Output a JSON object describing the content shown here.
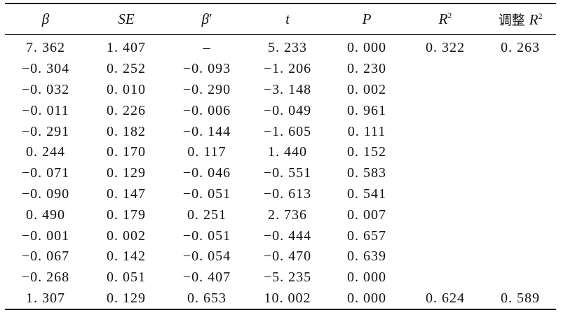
{
  "table": {
    "headers": [
      {
        "text": "β"
      },
      {
        "text": "SE"
      },
      {
        "text": "β",
        "suffix": "′"
      },
      {
        "text": "t"
      },
      {
        "text": "P"
      },
      {
        "text": "R",
        "sup": "2"
      },
      {
        "prefix": "调整 ",
        "text": "R",
        "sup": "2"
      }
    ],
    "rows": [
      [
        "7. 362",
        "1. 407",
        "–",
        "5. 233",
        "0. 000",
        "0. 322",
        "0. 263"
      ],
      [
        "−0. 304",
        "0. 252",
        "−0. 093",
        "−1. 206",
        "0. 230",
        "",
        ""
      ],
      [
        "−0. 032",
        "0. 010",
        "−0. 290",
        "−3. 148",
        "0. 002",
        "",
        ""
      ],
      [
        "−0. 011",
        "0. 226",
        "−0. 006",
        "−0. 049",
        "0. 961",
        "",
        ""
      ],
      [
        "−0. 291",
        "0. 182",
        "−0. 144",
        "−1. 605",
        "0. 111",
        "",
        ""
      ],
      [
        "0. 244",
        "0. 170",
        "0. 117",
        "1. 440",
        "0. 152",
        "",
        ""
      ],
      [
        "−0. 071",
        "0. 129",
        "−0. 046",
        "−0. 551",
        "0. 583",
        "",
        ""
      ],
      [
        "−0. 090",
        "0. 147",
        "−0. 051",
        "−0. 613",
        "0. 541",
        "",
        ""
      ],
      [
        "0. 490",
        "0. 179",
        "0. 251",
        "2. 736",
        "0. 007",
        "",
        ""
      ],
      [
        "−0. 001",
        "0. 002",
        "−0. 051",
        "−0. 444",
        "0. 657",
        "",
        ""
      ],
      [
        "−0. 067",
        "0. 142",
        "−0. 054",
        "−0. 470",
        "0. 639",
        "",
        ""
      ],
      [
        "−0. 268",
        "0. 051",
        "−0. 407",
        "−5. 235",
        "0. 000",
        "",
        ""
      ],
      [
        "1. 307",
        "0. 129",
        "0. 653",
        "10. 002",
        "0. 000",
        "0. 624",
        "0. 589"
      ]
    ]
  }
}
